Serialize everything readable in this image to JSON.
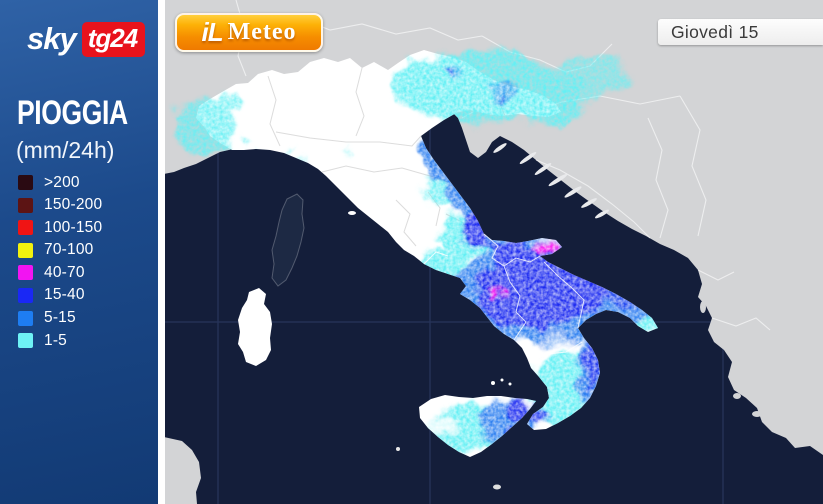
{
  "header": {
    "sky_brand": {
      "sky": "sky",
      "tg": "tg24"
    },
    "meteo_logo": {
      "il": "iL",
      "meteo": "Meteo"
    },
    "date_label": "Giovedì 15"
  },
  "panel": {
    "title": "PIOGGIA",
    "unit": "(mm/24h)"
  },
  "legend": {
    "items": [
      {
        "label": ">200",
        "color": "#2a0a12"
      },
      {
        "label": "150-200",
        "color": "#5c1414"
      },
      {
        "label": "100-150",
        "color": "#f01414"
      },
      {
        "label": "70-100",
        "color": "#f2f20e"
      },
      {
        "label": "40-70",
        "color": "#f214f2"
      },
      {
        "label": "15-40",
        "color": "#1a28f5"
      },
      {
        "label": "5-15",
        "color": "#1e7df2"
      },
      {
        "label": "1-5",
        "color": "#6ef2f5"
      }
    ]
  },
  "map": {
    "region": "Italy",
    "layer": "precipitation mm/24h"
  },
  "css_vars": {
    "--sb-top": "#2f62a6",
    "--sb-mid": "#1c4a8b",
    "--sb-bot": "#123a74",
    "--sky-red": "#e8131c",
    "--meteo-orange": "#ef7a00",
    "--sea": "#141e3a",
    "--land": "#d3d4d6",
    "--italy": "#ffffff",
    "--rc": "#64f0f4",
    "--rb": "#2f80f0",
    "--rd": "#1c2cf0",
    "--rm": "#fb1cf2"
  }
}
